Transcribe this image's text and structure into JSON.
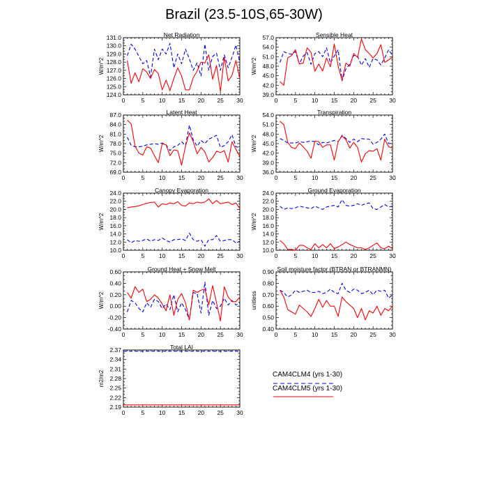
{
  "figure": {
    "title": "Brazil (23.5-10S,65-30W)",
    "legend": [
      {
        "label": "CAM4CLM4 (yrs 1-30)",
        "color": "#0000ff",
        "dash": "dashed"
      },
      {
        "label": "CAM4CLM5 (yrs 1-30)",
        "color": "#ff0000",
        "dash": "solid"
      }
    ]
  },
  "chart_data": [
    {
      "type": "line",
      "title": "Net Radiation",
      "ylabel": "W/m^2",
      "xlim": [
        0,
        30
      ],
      "xticks": [
        0,
        5,
        10,
        15,
        20,
        25,
        30
      ],
      "ylim": [
        124.0,
        131.0
      ],
      "yticks": [
        "124.0",
        "125.0",
        "126.0",
        "127.0",
        "128.0",
        "129.0",
        "130.0",
        "131.0"
      ],
      "x": [
        1,
        2,
        3,
        4,
        5,
        6,
        7,
        8,
        9,
        10,
        11,
        12,
        13,
        14,
        15,
        16,
        17,
        18,
        19,
        20,
        21,
        22,
        23,
        24,
        25,
        26,
        27,
        28,
        29,
        30
      ],
      "series": [
        {
          "name": "CAM4CLM4 (yrs 1-30)",
          "values": [
            128.8,
            130.2,
            129.6,
            128.7,
            127.8,
            128.2,
            126.2,
            129.6,
            128.3,
            129.6,
            129.0,
            130.3,
            127.3,
            129.0,
            127.8,
            129.6,
            128.4,
            127.0,
            127.9,
            126.3,
            130.2,
            127.0,
            128.7,
            129.1,
            127.0,
            128.9,
            127.3,
            128.6,
            130.1,
            128.0
          ]
        },
        {
          "name": "CAM4CLM5 (yrs 1-30)",
          "values": [
            128.2,
            125.4,
            126.7,
            125.6,
            127.2,
            126.8,
            126.0,
            127.1,
            126.6,
            124.6,
            125.8,
            124.5,
            126.0,
            127.3,
            126.3,
            124.6,
            124.6,
            126.1,
            126.9,
            128.0,
            127.9,
            128.9,
            125.9,
            127.6,
            124.4,
            128.6,
            125.7,
            126.4,
            128.2,
            126.0
          ]
        }
      ]
    },
    {
      "type": "line",
      "title": "Sensible Heat",
      "ylabel": "W/m^2",
      "xlim": [
        0,
        30
      ],
      "xticks": [
        0,
        5,
        10,
        15,
        20,
        25,
        30
      ],
      "ylim": [
        39.0,
        57.0
      ],
      "yticks": [
        "39.0",
        "42.0",
        "45.0",
        "48.0",
        "51.0",
        "54.0",
        "57.0"
      ],
      "x": [
        1,
        2,
        3,
        4,
        5,
        6,
        7,
        8,
        9,
        10,
        11,
        12,
        13,
        14,
        15,
        16,
        17,
        18,
        19,
        20,
        21,
        22,
        23,
        24,
        25,
        26,
        27,
        28,
        29,
        30
      ],
      "series": [
        {
          "name": "CAM4CLM4 (yrs 1-30)",
          "values": [
            49.2,
            52.6,
            52.0,
            51.8,
            52.6,
            48.8,
            51.2,
            52.3,
            48.6,
            52.0,
            52.6,
            51.0,
            53.8,
            49.0,
            51.2,
            53.2,
            43.4,
            47.2,
            48.6,
            51.4,
            51.2,
            48.3,
            50.4,
            47.6,
            50.4,
            50.0,
            48.4,
            50.6,
            53.2,
            51.4
          ]
        },
        {
          "name": "CAM4CLM5 (yrs 1-30)",
          "values": [
            43.2,
            42.0,
            50.6,
            51.4,
            53.2,
            48.7,
            49.0,
            53.8,
            52.4,
            46.4,
            48.7,
            46.5,
            50.6,
            47.8,
            55.0,
            48.0,
            43.6,
            49.0,
            48.0,
            52.0,
            50.8,
            56.6,
            53.2,
            52.0,
            50.6,
            52.0,
            54.8,
            49.2,
            50.0,
            50.8
          ]
        }
      ]
    },
    {
      "type": "line",
      "title": "Latent Heat",
      "ylabel": "W/m^2",
      "xlim": [
        0,
        30
      ],
      "xticks": [
        0,
        5,
        10,
        15,
        20,
        25,
        30
      ],
      "ylim": [
        69.0,
        87.0
      ],
      "yticks": [
        "69.0",
        "72.0",
        "75.0",
        "78.0",
        "81.0",
        "84.0",
        "87.0"
      ],
      "x": [
        1,
        2,
        3,
        4,
        5,
        6,
        7,
        8,
        9,
        10,
        11,
        12,
        13,
        14,
        15,
        16,
        17,
        18,
        19,
        20,
        21,
        22,
        23,
        24,
        25,
        26,
        27,
        28,
        29,
        30
      ],
      "series": [
        {
          "name": "CAM4CLM4 (yrs 1-30)",
          "values": [
            80.0,
            77.5,
            77.0,
            77.0,
            77.2,
            77.6,
            77.8,
            78.0,
            77.8,
            78.2,
            77.6,
            75.8,
            77.0,
            77.4,
            78.6,
            77.4,
            83.8,
            79.2,
            77.2,
            79.0,
            78.0,
            79.4,
            80.0,
            80.6,
            76.8,
            77.4,
            78.6,
            80.8,
            77.0,
            76.8
          ]
        },
        {
          "name": "CAM4CLM5 (yrs 1-30)",
          "values": [
            85.4,
            84.2,
            77.2,
            75.0,
            74.4,
            77.0,
            76.6,
            74.2,
            72.0,
            78.0,
            77.6,
            74.2,
            76.0,
            75.8,
            71.2,
            77.2,
            81.4,
            78.6,
            74.8,
            76.8,
            75.4,
            72.2,
            73.6,
            75.6,
            75.2,
            75.8,
            72.2,
            78.6,
            76.2,
            74.0
          ]
        }
      ]
    },
    {
      "type": "line",
      "title": "Transpiration",
      "ylabel": "W/m^2",
      "xlim": [
        0,
        30
      ],
      "xticks": [
        0,
        5,
        10,
        15,
        20,
        25,
        30
      ],
      "ylim": [
        36.0,
        54.0
      ],
      "yticks": [
        "36.0",
        "39.0",
        "42.0",
        "45.0",
        "48.0",
        "51.0",
        "54.0"
      ],
      "x": [
        1,
        2,
        3,
        4,
        5,
        6,
        7,
        8,
        9,
        10,
        11,
        12,
        13,
        14,
        15,
        16,
        17,
        18,
        19,
        20,
        21,
        22,
        23,
        24,
        25,
        26,
        27,
        28,
        29,
        30
      ],
      "series": [
        {
          "name": "CAM4CLM4 (yrs 1-30)",
          "values": [
            46.6,
            46.0,
            45.2,
            45.2,
            45.2,
            45.6,
            45.4,
            45.6,
            45.8,
            45.6,
            44.6,
            45.4,
            45.2,
            45.6,
            46.0,
            45.6,
            47.6,
            46.6,
            45.4,
            46.4,
            45.6,
            46.6,
            46.4,
            46.4,
            44.8,
            45.4,
            46.4,
            48.0,
            45.0,
            45.2
          ]
        },
        {
          "name": "CAM4CLM5 (yrs 1-30)",
          "values": [
            52.0,
            51.0,
            45.4,
            43.8,
            43.4,
            45.2,
            44.0,
            42.6,
            40.4,
            45.8,
            45.6,
            43.8,
            44.6,
            44.6,
            39.8,
            45.6,
            47.4,
            46.2,
            43.6,
            45.4,
            43.8,
            39.2,
            41.8,
            42.8,
            42.6,
            43.4,
            39.8,
            46.4,
            44.0,
            43.6
          ]
        }
      ]
    },
    {
      "type": "line",
      "title": "Canopy Evaporation",
      "ylabel": "W/m^2",
      "xlim": [
        0,
        30
      ],
      "xticks": [
        0,
        5,
        10,
        15,
        20,
        25,
        30
      ],
      "ylim": [
        10.0,
        24.0
      ],
      "yticks": [
        "10.0",
        "12.0",
        "14.0",
        "16.0",
        "18.0",
        "20.0",
        "22.0",
        "24.0"
      ],
      "x": [
        1,
        2,
        3,
        4,
        5,
        6,
        7,
        8,
        9,
        10,
        11,
        12,
        13,
        14,
        15,
        16,
        17,
        18,
        19,
        20,
        21,
        22,
        23,
        24,
        25,
        26,
        27,
        28,
        29,
        30
      ],
      "series": [
        {
          "name": "CAM4CLM4 (yrs 1-30)",
          "values": [
            12.6,
            11.8,
            12.4,
            12.2,
            12.4,
            12.8,
            12.2,
            12.6,
            12.4,
            13.0,
            12.4,
            12.0,
            12.6,
            12.6,
            12.8,
            12.4,
            14.2,
            12.6,
            12.2,
            12.6,
            11.0,
            12.6,
            12.6,
            13.6,
            12.2,
            12.4,
            12.6,
            12.6,
            11.8,
            12.2
          ]
        },
        {
          "name": "CAM4CLM5 (yrs 1-30)",
          "values": [
            20.4,
            20.6,
            20.7,
            20.9,
            21.2,
            21.5,
            21.7,
            21.8,
            20.6,
            21.4,
            21.2,
            21.6,
            21.4,
            21.9,
            21.0,
            20.8,
            21.6,
            21.4,
            21.8,
            21.6,
            21.8,
            22.6,
            21.4,
            22.2,
            21.4,
            21.6,
            21.8,
            21.2,
            21.6,
            20.2
          ]
        }
      ]
    },
    {
      "type": "line",
      "title": "Ground Evaporation",
      "ylabel": "W/m^2",
      "xlim": [
        0,
        30
      ],
      "xticks": [
        0,
        5,
        10,
        15,
        20,
        25,
        30
      ],
      "ylim": [
        10.0,
        24.0
      ],
      "yticks": [
        "10.0",
        "12.0",
        "14.0",
        "16.0",
        "18.0",
        "20.0",
        "22.0",
        "24.0"
      ],
      "x": [
        1,
        2,
        3,
        4,
        5,
        6,
        7,
        8,
        9,
        10,
        11,
        12,
        13,
        14,
        15,
        16,
        17,
        18,
        19,
        20,
        21,
        22,
        23,
        24,
        25,
        26,
        27,
        28,
        29,
        30
      ],
      "series": [
        {
          "name": "CAM4CLM4 (yrs 1-30)",
          "values": [
            20.8,
            20.0,
            20.4,
            20.2,
            20.4,
            20.8,
            20.6,
            20.4,
            20.2,
            20.8,
            20.4,
            20.0,
            20.6,
            20.8,
            21.0,
            20.6,
            22.4,
            21.0,
            20.8,
            21.0,
            21.4,
            21.0,
            21.4,
            21.6,
            20.2,
            20.0,
            20.6,
            21.2,
            20.6,
            20.8
          ]
        },
        {
          "name": "CAM4CLM5 (yrs 1-30)",
          "values": [
            12.4,
            11.6,
            10.2,
            10.2,
            10.0,
            11.2,
            11.2,
            10.6,
            10.2,
            11.6,
            10.6,
            11.4,
            10.6,
            11.6,
            10.4,
            10.8,
            11.4,
            12.0,
            11.4,
            11.0,
            10.6,
            10.6,
            10.2,
            10.6,
            11.2,
            11.8,
            10.6,
            10.4,
            11.0,
            10.4
          ]
        }
      ]
    },
    {
      "type": "line",
      "title": "Ground Heat + Snow Melt",
      "ylabel": "W/m^2",
      "xlim": [
        0,
        30
      ],
      "xticks": [
        0,
        5,
        10,
        15,
        20,
        25,
        30
      ],
      "ylim": [
        -0.4,
        0.6
      ],
      "yticks": [
        "-0.40",
        "-0.20",
        "0.00",
        "0.20",
        "0.40",
        "0.60"
      ],
      "x": [
        1,
        2,
        3,
        4,
        5,
        6,
        7,
        8,
        9,
        10,
        11,
        12,
        13,
        14,
        15,
        16,
        17,
        18,
        19,
        20,
        21,
        22,
        23,
        24,
        25,
        26,
        27,
        28,
        29,
        30
      ],
      "series": [
        {
          "name": "CAM4CLM4 (yrs 1-30)",
          "values": [
            -0.1,
            0.1,
            0.06,
            -0.04,
            -0.1,
            0.06,
            -0.02,
            0.12,
            0.08,
            -0.04,
            0.04,
            -0.06,
            0.2,
            -0.1,
            0.06,
            -0.06,
            -0.24,
            0.24,
            0.22,
            -0.12,
            0.42,
            -0.16,
            0.1,
            -0.04,
            0.0,
            0.14,
            0.02,
            0.1,
            0.02,
            0.06
          ]
        },
        {
          "name": "CAM4CLM5 (yrs 1-30)",
          "values": [
            0.24,
            0.14,
            0.34,
            0.24,
            0.3,
            0.08,
            0.12,
            0.2,
            0.14,
            0.04,
            -0.08,
            0.2,
            -0.16,
            0.12,
            0.22,
            0.06,
            -0.24,
            0.28,
            0.24,
            0.28,
            0.3,
            0.02,
            0.36,
            0.06,
            -0.26,
            0.34,
            0.16,
            0.08,
            0.08,
            0.16
          ]
        }
      ]
    },
    {
      "type": "line",
      "title": "Soil moisture factor (BTRAN or BTRANMN)",
      "ylabel": "unitless",
      "xlim": [
        0,
        30
      ],
      "xticks": [
        0,
        5,
        10,
        15,
        20,
        25,
        30
      ],
      "ylim": [
        0.4,
        0.9
      ],
      "yticks": [
        "0.40",
        "0.50",
        "0.60",
        "0.70",
        "0.80",
        "0.90"
      ],
      "x": [
        1,
        2,
        3,
        4,
        5,
        6,
        7,
        8,
        9,
        10,
        11,
        12,
        13,
        14,
        15,
        16,
        17,
        18,
        19,
        20,
        21,
        22,
        23,
        24,
        25,
        26,
        27,
        28,
        29,
        30
      ],
      "series": [
        {
          "name": "CAM4CLM4 (yrs 1-30)",
          "values": [
            0.74,
            0.72,
            0.68,
            0.7,
            0.74,
            0.72,
            0.73,
            0.74,
            0.72,
            0.72,
            0.73,
            0.71,
            0.72,
            0.75,
            0.72,
            0.71,
            0.8,
            0.74,
            0.72,
            0.75,
            0.74,
            0.71,
            0.72,
            0.74,
            0.7,
            0.74,
            0.73,
            0.74,
            0.67,
            0.7
          ]
        },
        {
          "name": "CAM4CLM5 (yrs 1-30)",
          "values": [
            0.74,
            0.68,
            0.57,
            0.55,
            0.53,
            0.61,
            0.58,
            0.55,
            0.51,
            0.58,
            0.66,
            0.59,
            0.65,
            0.6,
            0.6,
            0.51,
            0.68,
            0.64,
            0.61,
            0.58,
            0.5,
            0.58,
            0.48,
            0.56,
            0.54,
            0.6,
            0.52,
            0.58,
            0.56,
            0.6
          ]
        }
      ]
    },
    {
      "type": "line",
      "title": "Total LAI",
      "ylabel": "m2/m2",
      "xlim": [
        0,
        30
      ],
      "xticks": [
        0,
        5,
        10,
        15,
        20,
        25,
        30
      ],
      "ylim": [
        2.19,
        2.37
      ],
      "yticks": [
        "2.19",
        "2.22",
        "2.25",
        "2.28",
        "2.31",
        "2.34",
        "2.37"
      ],
      "x": [
        0,
        30
      ],
      "series": [
        {
          "name": "CAM4CLM4 (yrs 1-30)",
          "values": [
            2.366,
            2.366
          ]
        },
        {
          "name": "CAM4CLM5 (yrs 1-30)",
          "values": [
            2.197,
            2.197
          ]
        }
      ]
    }
  ]
}
